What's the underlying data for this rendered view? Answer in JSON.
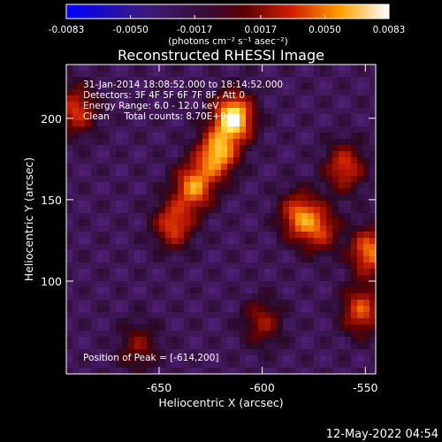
{
  "chart_data": {
    "type": "heatmap",
    "title": "Reconstructed RHESSI Image",
    "xlabel": "Heliocentric X (arcsec)",
    "ylabel": "Heliocentric Y (arcsec)",
    "xlim": [
      -695,
      -545
    ],
    "ylim": [
      43,
      233
    ],
    "xticks": [
      -650,
      -600,
      -550
    ],
    "xtick_labels": [
      "-650",
      "-600",
      "-550"
    ],
    "yticks": [
      100,
      150,
      200
    ],
    "ytick_labels": [
      "100",
      "150",
      "200"
    ],
    "colorbar": {
      "range": [
        -0.0083,
        0.0083
      ],
      "ticks": [
        -0.0083,
        -0.005,
        -0.0017,
        0.0017,
        0.005,
        0.0083
      ],
      "tick_labels": [
        "-0.0083",
        "-0.0050",
        "-0.0017",
        "0.0017",
        "0.0050",
        "0.0083"
      ],
      "unit_label": "(photons cm⁻² s⁻¹ asec⁻²)"
    },
    "annotations": [
      "31-Jan-2014 18:08:52.000 to 18:14:52.000",
      "Detectors: 3F 4F 5F 6F 7F 8F, Att 0",
      "Energy Range: 6.0 - 12.0 keV",
      "Clean     Total counts: 8.70E+04"
    ],
    "peak_label": "Position of Peak = [-614,200]",
    "peak": [
      -614,
      200
    ],
    "sources": [
      {
        "x": -614,
        "y": 200,
        "amp": 1.0
      },
      {
        "x": -622,
        "y": 178,
        "amp": 0.8
      },
      {
        "x": -633,
        "y": 158,
        "amp": 0.7
      },
      {
        "x": -643,
        "y": 135,
        "amp": 0.55
      },
      {
        "x": -582,
        "y": 140,
        "amp": 0.6
      },
      {
        "x": -572,
        "y": 132,
        "amp": 0.45
      },
      {
        "x": -560,
        "y": 170,
        "amp": 0.5
      },
      {
        "x": -548,
        "y": 118,
        "amp": 0.65
      },
      {
        "x": -552,
        "y": 82,
        "amp": 0.55
      },
      {
        "x": -600,
        "y": 75,
        "amp": 0.35
      },
      {
        "x": -690,
        "y": 205,
        "amp": 0.5
      },
      {
        "x": -660,
        "y": 60,
        "amp": 0.3
      }
    ],
    "grid": false,
    "legend": "none",
    "colormap": "blue-purple-red-yellow-white"
  },
  "footer": {
    "timestamp": "12-May-2022 04:54"
  }
}
